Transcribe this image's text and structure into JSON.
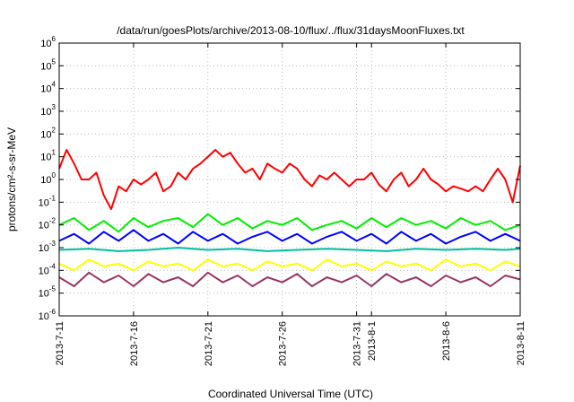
{
  "chart_data": {
    "type": "line",
    "title": "/data/run/goesPlots/archive/2013-08-10/flux/../flux/31daysMoonFluxes.txt",
    "xlabel": "Coordinated Universal Time (UTC)",
    "ylabel": "protons/cm²-s-sr-MeV",
    "y_scale": "log",
    "ylim": [
      1e-06,
      1000000.0
    ],
    "y_ticks": [
      {
        "value": 1e-06,
        "mant": "10",
        "exp": "-6"
      },
      {
        "value": 1e-05,
        "mant": "10",
        "exp": "-5"
      },
      {
        "value": 0.0001,
        "mant": "10",
        "exp": "-4"
      },
      {
        "value": 0.001,
        "mant": "10",
        "exp": "-3"
      },
      {
        "value": 0.01,
        "mant": "10",
        "exp": "-2"
      },
      {
        "value": 0.1,
        "mant": "10",
        "exp": "-1"
      },
      {
        "value": 1.0,
        "mant": "10",
        "exp": "0"
      },
      {
        "value": 10.0,
        "mant": "10",
        "exp": "1"
      },
      {
        "value": 100.0,
        "mant": "10",
        "exp": "2"
      },
      {
        "value": 1000.0,
        "mant": "10",
        "exp": "3"
      },
      {
        "value": 10000.0,
        "mant": "10",
        "exp": "4"
      },
      {
        "value": 100000.0,
        "mant": "10",
        "exp": "5"
      },
      {
        "value": 1000000.0,
        "mant": "10",
        "exp": "6"
      }
    ],
    "x_range": [
      "2013-07-11",
      "2013-08-11"
    ],
    "x_ticks": [
      {
        "date": "2013-07-11",
        "label": "2013-7-11"
      },
      {
        "date": "2013-07-16",
        "label": "2013-7-16"
      },
      {
        "date": "2013-07-21",
        "label": "2013-7-21"
      },
      {
        "date": "2013-07-26",
        "label": "2013-7-26"
      },
      {
        "date": "2013-07-31",
        "label": "2013-7-31"
      },
      {
        "date": "2013-08-01",
        "label": "2013-8-1"
      },
      {
        "date": "2013-08-06",
        "label": "2013-8-6"
      },
      {
        "date": "2013-08-11",
        "label": "2013-8-11"
      }
    ],
    "grid": true,
    "series": [
      {
        "color": "#ff0000",
        "points": [
          [
            "2013-07-11",
            3.0
          ],
          [
            "2013-07-11T12:00",
            20
          ],
          [
            "2013-07-12",
            5.0
          ],
          [
            "2013-07-12T12:00",
            1.0
          ],
          [
            "2013-07-13",
            1.0
          ],
          [
            "2013-07-13T12:00",
            2.0
          ],
          [
            "2013-07-14",
            0.2
          ],
          [
            "2013-07-14T12:00",
            0.05
          ],
          [
            "2013-07-15",
            0.5
          ],
          [
            "2013-07-15T12:00",
            0.3
          ],
          [
            "2013-07-16",
            1.0
          ],
          [
            "2013-07-16T12:00",
            0.6
          ],
          [
            "2013-07-17",
            1.0
          ],
          [
            "2013-07-17T12:00",
            2.0
          ],
          [
            "2013-07-18",
            0.3
          ],
          [
            "2013-07-18T12:00",
            0.5
          ],
          [
            "2013-07-19",
            2.0
          ],
          [
            "2013-07-19T12:00",
            1.0
          ],
          [
            "2013-07-20",
            3.0
          ],
          [
            "2013-07-20T12:00",
            5.0
          ],
          [
            "2013-07-21",
            10
          ],
          [
            "2013-07-21T12:00",
            20
          ],
          [
            "2013-07-22",
            10
          ],
          [
            "2013-07-22T12:00",
            15
          ],
          [
            "2013-07-23",
            5.0
          ],
          [
            "2013-07-23T12:00",
            2.0
          ],
          [
            "2013-07-24",
            3.0
          ],
          [
            "2013-07-24T12:00",
            1.0
          ],
          [
            "2013-07-25",
            5.0
          ],
          [
            "2013-07-25T12:00",
            3.0
          ],
          [
            "2013-07-26",
            2.0
          ],
          [
            "2013-07-26T12:00",
            5.0
          ],
          [
            "2013-07-27",
            3.0
          ],
          [
            "2013-07-27T12:00",
            1.0
          ],
          [
            "2013-07-28",
            0.5
          ],
          [
            "2013-07-28T12:00",
            1.5
          ],
          [
            "2013-07-29",
            1.0
          ],
          [
            "2013-07-29T12:00",
            2.0
          ],
          [
            "2013-07-30",
            1.0
          ],
          [
            "2013-07-30T12:00",
            0.5
          ],
          [
            "2013-07-31",
            1.0
          ],
          [
            "2013-07-31T12:00",
            1.0
          ],
          [
            "2013-08-01",
            2.0
          ],
          [
            "2013-08-01T12:00",
            0.6
          ],
          [
            "2013-08-02",
            0.3
          ],
          [
            "2013-08-02T12:00",
            1.0
          ],
          [
            "2013-08-03",
            2.0
          ],
          [
            "2013-08-03T12:00",
            0.5
          ],
          [
            "2013-08-04",
            1.0
          ],
          [
            "2013-08-04T12:00",
            3.0
          ],
          [
            "2013-08-05",
            1.0
          ],
          [
            "2013-08-05T12:00",
            0.6
          ],
          [
            "2013-08-06",
            0.3
          ],
          [
            "2013-08-06T12:00",
            0.5
          ],
          [
            "2013-08-07",
            0.4
          ],
          [
            "2013-08-07T12:00",
            0.3
          ],
          [
            "2013-08-08",
            0.5
          ],
          [
            "2013-08-08T12:00",
            0.3
          ],
          [
            "2013-08-09",
            1.0
          ],
          [
            "2013-08-09T12:00",
            3.0
          ],
          [
            "2013-08-10",
            1.0
          ],
          [
            "2013-08-10T12:00",
            0.1
          ],
          [
            "2013-08-11",
            4.0
          ]
        ]
      },
      {
        "color": "#00ee00",
        "points": [
          [
            "2013-07-11",
            0.01
          ],
          [
            "2013-07-12",
            0.02
          ],
          [
            "2013-07-13",
            0.006
          ],
          [
            "2013-07-14",
            0.015
          ],
          [
            "2013-07-15",
            0.005
          ],
          [
            "2013-07-16",
            0.02
          ],
          [
            "2013-07-17",
            0.008
          ],
          [
            "2013-07-18",
            0.015
          ],
          [
            "2013-07-19",
            0.02
          ],
          [
            "2013-07-20",
            0.008
          ],
          [
            "2013-07-21",
            0.03
          ],
          [
            "2013-07-22",
            0.01
          ],
          [
            "2013-07-23",
            0.02
          ],
          [
            "2013-07-24",
            0.007
          ],
          [
            "2013-07-25",
            0.015
          ],
          [
            "2013-07-26",
            0.01
          ],
          [
            "2013-07-27",
            0.02
          ],
          [
            "2013-07-28",
            0.006
          ],
          [
            "2013-07-29",
            0.01
          ],
          [
            "2013-07-30",
            0.015
          ],
          [
            "2013-07-31",
            0.007
          ],
          [
            "2013-08-01",
            0.02
          ],
          [
            "2013-08-02",
            0.008
          ],
          [
            "2013-08-03",
            0.02
          ],
          [
            "2013-08-04",
            0.01
          ],
          [
            "2013-08-05",
            0.015
          ],
          [
            "2013-08-06",
            0.007
          ],
          [
            "2013-08-07",
            0.02
          ],
          [
            "2013-08-08",
            0.01
          ],
          [
            "2013-08-09",
            0.015
          ],
          [
            "2013-08-10",
            0.006
          ],
          [
            "2013-08-11",
            0.01
          ]
        ]
      },
      {
        "color": "#0000ff",
        "points": [
          [
            "2013-07-11",
            0.002
          ],
          [
            "2013-07-12",
            0.004
          ],
          [
            "2013-07-13",
            0.0015
          ],
          [
            "2013-07-14",
            0.005
          ],
          [
            "2013-07-15",
            0.002
          ],
          [
            "2013-07-16",
            0.006
          ],
          [
            "2013-07-17",
            0.002
          ],
          [
            "2013-07-18",
            0.004
          ],
          [
            "2013-07-19",
            0.0015
          ],
          [
            "2013-07-20",
            0.005
          ],
          [
            "2013-07-21",
            0.002
          ],
          [
            "2013-07-22",
            0.004
          ],
          [
            "2013-07-23",
            0.0015
          ],
          [
            "2013-07-24",
            0.003
          ],
          [
            "2013-07-25",
            0.005
          ],
          [
            "2013-07-26",
            0.002
          ],
          [
            "2013-07-27",
            0.004
          ],
          [
            "2013-07-28",
            0.0015
          ],
          [
            "2013-07-29",
            0.003
          ],
          [
            "2013-07-30",
            0.005
          ],
          [
            "2013-07-31",
            0.002
          ],
          [
            "2013-08-01",
            0.004
          ],
          [
            "2013-08-02",
            0.0015
          ],
          [
            "2013-08-03",
            0.005
          ],
          [
            "2013-08-04",
            0.002
          ],
          [
            "2013-08-05",
            0.004
          ],
          [
            "2013-08-06",
            0.0015
          ],
          [
            "2013-08-07",
            0.003
          ],
          [
            "2013-08-08",
            0.005
          ],
          [
            "2013-08-09",
            0.002
          ],
          [
            "2013-08-10",
            0.004
          ],
          [
            "2013-08-11",
            0.002
          ]
        ]
      },
      {
        "color": "#00bfa0",
        "points": [
          [
            "2013-07-11",
            0.0008
          ],
          [
            "2013-07-13",
            0.0009
          ],
          [
            "2013-07-15",
            0.0007
          ],
          [
            "2013-07-17",
            0.0008
          ],
          [
            "2013-07-19",
            0.001
          ],
          [
            "2013-07-21",
            0.0008
          ],
          [
            "2013-07-23",
            0.0009
          ],
          [
            "2013-07-25",
            0.0007
          ],
          [
            "2013-07-27",
            0.0008
          ],
          [
            "2013-07-29",
            0.0009
          ],
          [
            "2013-07-31",
            0.0008
          ],
          [
            "2013-08-02",
            0.0007
          ],
          [
            "2013-08-04",
            0.0009
          ],
          [
            "2013-08-06",
            0.0008
          ],
          [
            "2013-08-08",
            0.0009
          ],
          [
            "2013-08-10",
            0.0008
          ],
          [
            "2013-08-11",
            0.0009
          ]
        ]
      },
      {
        "color": "#ffff00",
        "points": [
          [
            "2013-07-11",
            0.0002
          ],
          [
            "2013-07-12",
            0.0001
          ],
          [
            "2013-07-13",
            0.0003
          ],
          [
            "2013-07-14",
            0.00015
          ],
          [
            "2013-07-15",
            0.0002
          ],
          [
            "2013-07-16",
            0.0001
          ],
          [
            "2013-07-17",
            0.00025
          ],
          [
            "2013-07-18",
            0.00015
          ],
          [
            "2013-07-19",
            0.0002
          ],
          [
            "2013-07-20",
            0.0001
          ],
          [
            "2013-07-21",
            0.0003
          ],
          [
            "2013-07-22",
            0.00015
          ],
          [
            "2013-07-23",
            0.0002
          ],
          [
            "2013-07-24",
            0.0001
          ],
          [
            "2013-07-25",
            0.00025
          ],
          [
            "2013-07-26",
            0.00015
          ],
          [
            "2013-07-27",
            0.0002
          ],
          [
            "2013-07-28",
            0.0001
          ],
          [
            "2013-07-29",
            0.0003
          ],
          [
            "2013-07-30",
            0.00015
          ],
          [
            "2013-07-31",
            0.0002
          ],
          [
            "2013-08-01",
            0.0001
          ],
          [
            "2013-08-02",
            0.00025
          ],
          [
            "2013-08-03",
            0.00015
          ],
          [
            "2013-08-04",
            0.0002
          ],
          [
            "2013-08-05",
            0.0001
          ],
          [
            "2013-08-06",
            0.0003
          ],
          [
            "2013-08-07",
            0.00015
          ],
          [
            "2013-08-08",
            0.0002
          ],
          [
            "2013-08-09",
            0.0001
          ],
          [
            "2013-08-10",
            0.00025
          ],
          [
            "2013-08-11",
            0.00015
          ]
        ]
      },
      {
        "color": "#993366",
        "points": [
          [
            "2013-07-11",
            5e-05
          ],
          [
            "2013-07-12",
            2e-05
          ],
          [
            "2013-07-13",
            8e-05
          ],
          [
            "2013-07-14",
            3e-05
          ],
          [
            "2013-07-15",
            6e-05
          ],
          [
            "2013-07-16",
            2e-05
          ],
          [
            "2013-07-17",
            7e-05
          ],
          [
            "2013-07-18",
            3e-05
          ],
          [
            "2013-07-19",
            5e-05
          ],
          [
            "2013-07-20",
            2e-05
          ],
          [
            "2013-07-21",
            8e-05
          ],
          [
            "2013-07-22",
            3e-05
          ],
          [
            "2013-07-23",
            6e-05
          ],
          [
            "2013-07-24",
            2e-05
          ],
          [
            "2013-07-25",
            5e-05
          ],
          [
            "2013-07-26",
            3e-05
          ],
          [
            "2013-07-27",
            7e-05
          ],
          [
            "2013-07-28",
            2e-05
          ],
          [
            "2013-07-29",
            5e-05
          ],
          [
            "2013-07-30",
            3e-05
          ],
          [
            "2013-07-31",
            6e-05
          ],
          [
            "2013-08-01",
            2e-05
          ],
          [
            "2013-08-02",
            7e-05
          ],
          [
            "2013-08-03",
            3e-05
          ],
          [
            "2013-08-04",
            5e-05
          ],
          [
            "2013-08-05",
            2e-05
          ],
          [
            "2013-08-06",
            6e-05
          ],
          [
            "2013-08-07",
            3e-05
          ],
          [
            "2013-08-08",
            5e-05
          ],
          [
            "2013-08-09",
            2e-05
          ],
          [
            "2013-08-10",
            6e-05
          ],
          [
            "2013-08-11",
            4e-05
          ]
        ]
      }
    ]
  }
}
